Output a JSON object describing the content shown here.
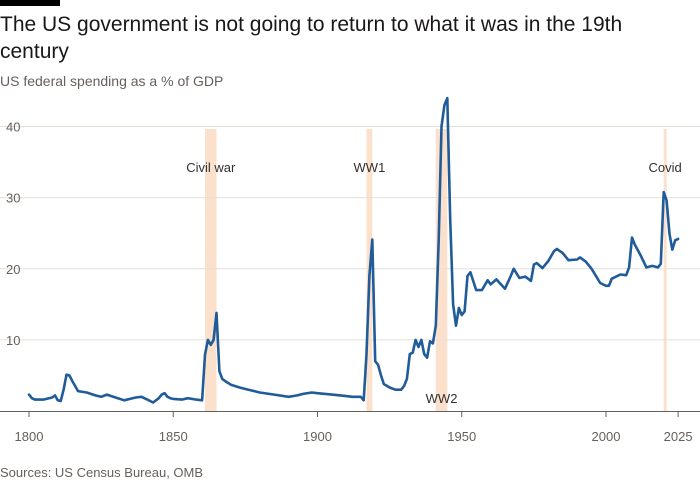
{
  "header": {
    "title": "The US government is not going to return to what it was in the 19th century",
    "subtitle": "US federal spending as a % of GDP"
  },
  "footer": {
    "source": "Sources: US Census Bureau, OMB"
  },
  "colors": {
    "line": "#1f5c99",
    "band": "#fbe0cc",
    "grid": "#e6dfd8",
    "baseline": "#66605c"
  },
  "chart_data": {
    "type": "line",
    "title": "The US government is not going to return to what it was in the 19th century",
    "subtitle": "US federal spending as a % of GDP",
    "xlabel": "",
    "ylabel": "",
    "xlim": [
      1800,
      2026
    ],
    "ylim": [
      0,
      45
    ],
    "xticks": [
      1800,
      1850,
      1900,
      1950,
      2000,
      2025
    ],
    "yticks": [
      10,
      20,
      30,
      40
    ],
    "grid": true,
    "legend": "none",
    "annotations": [
      {
        "label": "Civil war",
        "start": 1861,
        "end": 1865,
        "label_position": "top"
      },
      {
        "label": "WW1",
        "start": 1917,
        "end": 1919,
        "label_position": "top"
      },
      {
        "label": "WW2",
        "start": 1941,
        "end": 1945,
        "label_position": "bottom"
      },
      {
        "label": "Covid",
        "start": 2020,
        "end": 2021,
        "label_position": "top"
      }
    ],
    "series": [
      {
        "x": [
          1800,
          1801,
          1802,
          1805,
          1808,
          1809,
          1810,
          1811,
          1812,
          1813,
          1814,
          1815,
          1816,
          1817,
          1820,
          1823,
          1825,
          1827,
          1830,
          1833,
          1835,
          1837,
          1839,
          1841,
          1843,
          1845,
          1846,
          1847,
          1848,
          1849,
          1850,
          1853,
          1855,
          1858,
          1860,
          1861,
          1862,
          1863,
          1864,
          1865,
          1866,
          1867,
          1868,
          1870,
          1873,
          1875,
          1880,
          1885,
          1890,
          1893,
          1895,
          1898,
          1900,
          1905,
          1910,
          1912,
          1914,
          1915,
          1916,
          1917,
          1918,
          1919,
          1920,
          1921,
          1922,
          1923,
          1925,
          1927,
          1929,
          1930,
          1931,
          1932,
          1933,
          1934,
          1935,
          1936,
          1937,
          1938,
          1939,
          1940,
          1941,
          1942,
          1943,
          1944,
          1945,
          1946,
          1947,
          1948,
          1949,
          1950,
          1951,
          1952,
          1953,
          1955,
          1957,
          1959,
          1960,
          1962,
          1965,
          1967,
          1968,
          1970,
          1972,
          1974,
          1975,
          1976,
          1978,
          1980,
          1982,
          1983,
          1985,
          1987,
          1990,
          1991,
          1993,
          1995,
          1998,
          2000,
          2001,
          2002,
          2005,
          2007,
          2008,
          2009,
          2010,
          2012,
          2014,
          2016,
          2018,
          2019,
          2020,
          2021,
          2022,
          2023,
          2024,
          2025
        ],
        "values": [
          2.3,
          1.8,
          1.6,
          1.6,
          1.9,
          2.2,
          1.5,
          1.4,
          3.0,
          5.1,
          5.0,
          4.2,
          3.5,
          2.8,
          2.6,
          2.2,
          2.0,
          2.3,
          1.9,
          1.5,
          1.7,
          1.9,
          2.0,
          1.6,
          1.2,
          1.8,
          2.3,
          2.5,
          2.0,
          1.8,
          1.7,
          1.6,
          1.8,
          1.6,
          1.5,
          7.9,
          10.0,
          9.3,
          10.0,
          13.8,
          5.6,
          4.5,
          4.2,
          3.7,
          3.3,
          3.1,
          2.6,
          2.3,
          2.0,
          2.2,
          2.4,
          2.6,
          2.5,
          2.3,
          2.1,
          2.0,
          2.0,
          2.0,
          1.5,
          8.0,
          19.0,
          24.1,
          7.0,
          6.5,
          5.0,
          3.8,
          3.3,
          3.0,
          3.0,
          3.5,
          4.5,
          8.0,
          8.2,
          10.0,
          9.0,
          10.0,
          8.0,
          7.5,
          9.8,
          9.5,
          12.0,
          24.0,
          40.0,
          43.0,
          44.0,
          27.0,
          15.0,
          12.0,
          14.5,
          13.5,
          14.0,
          19.0,
          19.5,
          17.0,
          17.0,
          18.4,
          17.8,
          18.5,
          17.2,
          19.0,
          20.0,
          18.7,
          18.9,
          18.3,
          20.6,
          20.8,
          20.1,
          21.1,
          22.5,
          22.8,
          22.2,
          21.2,
          21.3,
          21.6,
          21.0,
          20.0,
          18.0,
          17.6,
          17.6,
          18.6,
          19.2,
          19.1,
          20.2,
          24.4,
          23.4,
          21.9,
          20.2,
          20.4,
          20.2,
          20.7,
          30.8,
          29.6,
          24.9,
          22.7,
          24.0,
          24.2
        ]
      }
    ]
  }
}
